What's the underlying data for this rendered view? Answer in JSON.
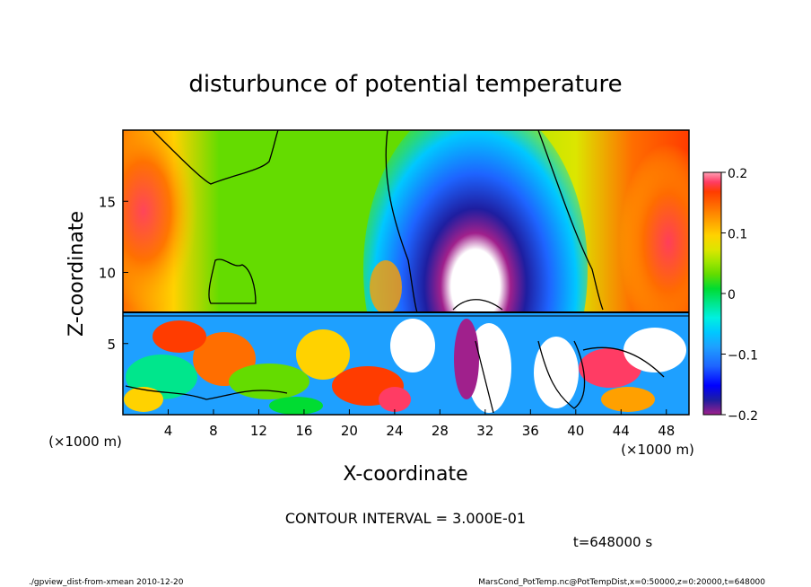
{
  "chart_data": {
    "type": "heatmap",
    "title": "disturbunce of potential temperature",
    "xlabel": "X-coordinate",
    "ylabel": "Z-coordinate",
    "x_unit_left": "(×1000 m)",
    "x_unit_right": "(×1000 m)",
    "xlim": [
      0,
      50
    ],
    "ylim": [
      0,
      20
    ],
    "x_ticks": [
      4,
      8,
      12,
      16,
      20,
      24,
      28,
      32,
      36,
      40,
      44,
      48
    ],
    "y_ticks": [
      5,
      10,
      15
    ],
    "colorbar": {
      "range": [
        -0.2,
        0.2
      ],
      "tick_values": [
        0.2,
        0.1,
        0,
        -0.1,
        -0.2
      ],
      "tick_labels": [
        "0.2",
        "0.1",
        "0",
        "−0.1",
        "−0.2"
      ],
      "colors": [
        "#a0208c",
        "#1e1ea0",
        "#0000ff",
        "#1e64ff",
        "#1ea0ff",
        "#00c8ff",
        "#00f0e0",
        "#00e68c",
        "#00dc32",
        "#64dc00",
        "#a0e600",
        "#dce600",
        "#ffd200",
        "#ffa000",
        "#ff6e00",
        "#ff3c00",
        "#ff3c64",
        "#ffa0b4"
      ]
    },
    "contour_interval": "CONTOUR INTERVAL = 3.000E-01",
    "time_label": "t=648000 s",
    "features": [
      {
        "region": "central column",
        "x_range": [
          27,
          36
        ],
        "z_range": [
          4,
          19
        ],
        "sign": "negative"
      },
      {
        "region": "left upper",
        "x_range": [
          0,
          8
        ],
        "z_range": [
          8,
          20
        ],
        "sign": "positive"
      },
      {
        "region": "right upper",
        "x_range": [
          44,
          50
        ],
        "z_range": [
          8,
          19
        ],
        "sign": "positive"
      }
    ]
  },
  "footer": {
    "left": "./gpview_dist-from-xmean  2010-12-20",
    "right": "MarsCond_PotTemp.nc@PotTempDist,x=0:50000,z=0:20000,t=648000"
  }
}
